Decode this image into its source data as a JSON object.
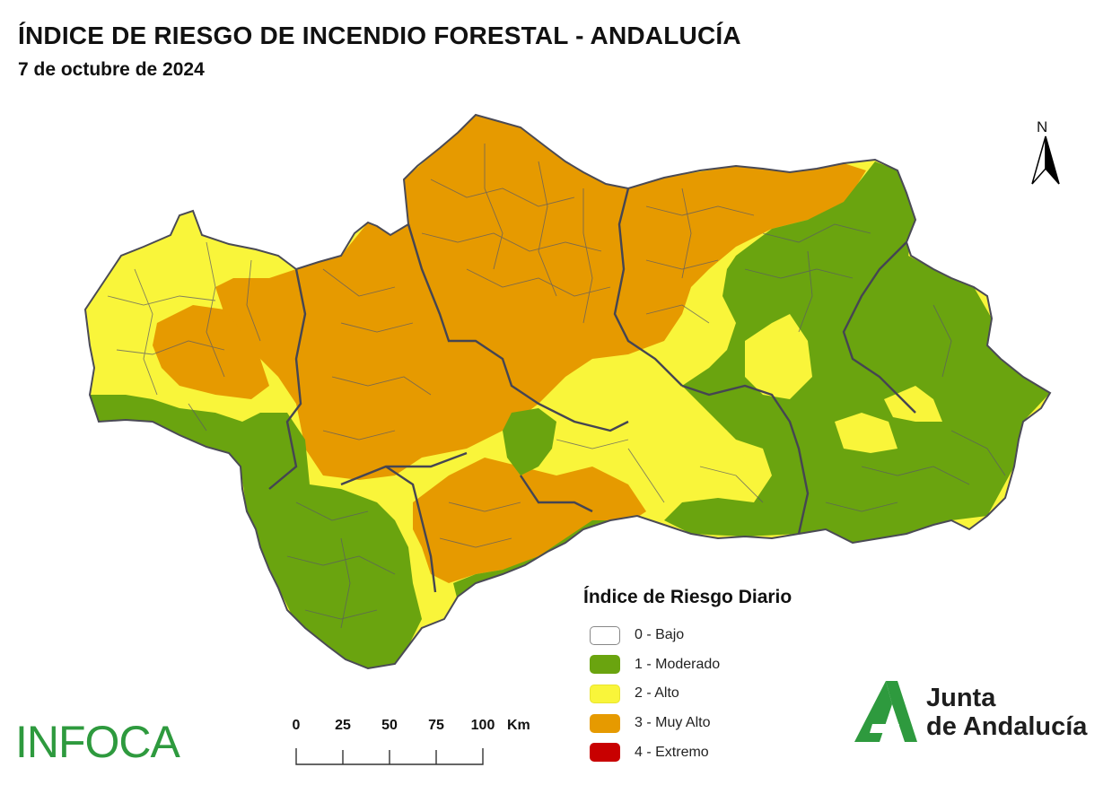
{
  "header": {
    "title": "ÍNDICE DE RIESGO DE INCENDIO FORESTAL - ANDALUCÍA",
    "date": "7 de octubre de 2024"
  },
  "north_arrow": {
    "label": "N"
  },
  "legend": {
    "title": "Índice de Riesgo Diario",
    "items": [
      {
        "label": "0 - Bajo",
        "color": "#ffffff"
      },
      {
        "label": "1 - Moderado",
        "color": "#6aa40f"
      },
      {
        "label": "2 - Alto",
        "color": "#f9f53a"
      },
      {
        "label": "3 - Muy Alto",
        "color": "#e69a00"
      },
      {
        "label": "4 - Extremo",
        "color": "#c80000"
      }
    ]
  },
  "scale_bar": {
    "ticks": [
      "0",
      "25",
      "50",
      "75",
      "100"
    ],
    "unit": "Km"
  },
  "logos": {
    "infoca": "INFOCA",
    "junta_line1": "Junta",
    "junta_line2": "de Andalucía",
    "infoca_color": "#2e9a3e",
    "junta_color": "#2e9a3e"
  },
  "map_colors": {
    "moderado": "#6aa40f",
    "alto": "#f9f53a",
    "muy_alto": "#e69a00",
    "border": "#4a4a55"
  }
}
